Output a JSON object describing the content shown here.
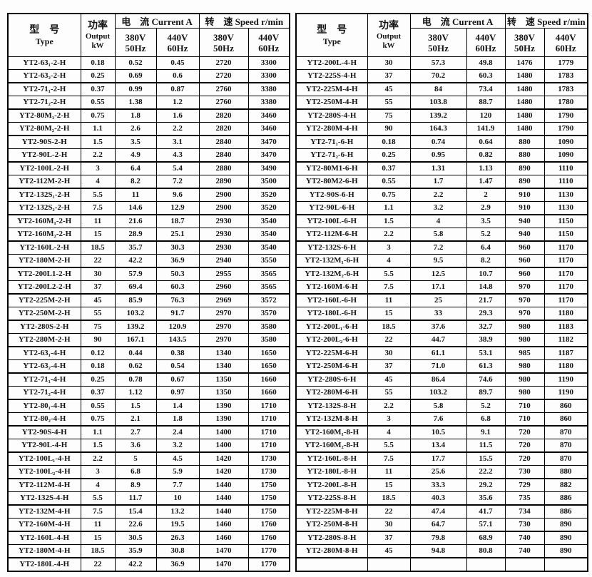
{
  "header": {
    "type_zh": "型　号",
    "type_en": "Type",
    "power_zh": "功率",
    "power_en": "Output",
    "power_unit": "kW",
    "current_label": "电　流 Current A",
    "speed_label": "转　速 Speed r/min",
    "v380": "380V",
    "hz50": "50Hz",
    "v440": "440V",
    "hz60": "60Hz"
  },
  "left_rows": [
    [
      "YT2-63₁-2-H",
      "0.18",
      "0.52",
      "0.45",
      "2720",
      "3300"
    ],
    [
      "YT2-63₂-2-H",
      "0.25",
      "0.69",
      "0.6",
      "2720",
      "3300"
    ],
    [
      "YT2-71₁-2-H",
      "0.37",
      "0.99",
      "0.87",
      "2760",
      "3380"
    ],
    [
      "YT2-71₂-2-H",
      "0.55",
      "1.38",
      "1.2",
      "2760",
      "3380"
    ],
    [
      "YT2-80M₁-2-H",
      "0.75",
      "1.8",
      "1.6",
      "2820",
      "3460"
    ],
    [
      "YT2-80M₂-2-H",
      "1.1",
      "2.6",
      "2.2",
      "2820",
      "3460"
    ],
    [
      "YT2-90S-2-H",
      "1.5",
      "3.5",
      "3.1",
      "2840",
      "3470"
    ],
    [
      "YT2-90L-2-H",
      "2.2",
      "4.9",
      "4.3",
      "2840",
      "3470"
    ],
    [
      "YT2-100L-2-H",
      "3",
      "6.4",
      "5.4",
      "2880",
      "3490"
    ],
    [
      "YT2-112M-2-H",
      "4",
      "8.2",
      "7.2",
      "2890",
      "3500"
    ],
    [
      "YT2-132S₁-2-H",
      "5.5",
      "11",
      "9.6",
      "2900",
      "3520"
    ],
    [
      "YT2-132S₂-2-H",
      "7.5",
      "14.6",
      "12.9",
      "2900",
      "3520"
    ],
    [
      "YT2-160M₁-2-H",
      "11",
      "21.6",
      "18.7",
      "2930",
      "3540"
    ],
    [
      "YT2-160M₂-2-H",
      "15",
      "28.9",
      "25.1",
      "2930",
      "3540"
    ],
    [
      "YT2-160L-2-H",
      "18.5",
      "35.7",
      "30.3",
      "2930",
      "3540"
    ],
    [
      "YT2-180M-2-H",
      "22",
      "42.2",
      "36.9",
      "2940",
      "3550"
    ],
    [
      "YT2-200L1-2-H",
      "30",
      "57.9",
      "50.3",
      "2955",
      "3565"
    ],
    [
      "YT2-200L2-2-H",
      "37",
      "69.4",
      "60.3",
      "2960",
      "3565"
    ],
    [
      "YT2-225M-2-H",
      "45",
      "85.9",
      "76.3",
      "2969",
      "3572"
    ],
    [
      "YT2-250M-2-H",
      "55",
      "103.2",
      "91.7",
      "2970",
      "3570"
    ],
    [
      "YT2-280S-2-H",
      "75",
      "139.2",
      "120.9",
      "2970",
      "3580"
    ],
    [
      "YT2-280M-2-H",
      "90",
      "167.1",
      "143.5",
      "2970",
      "3580"
    ],
    [
      "YT2-63₁-4-H",
      "0.12",
      "0.44",
      "0.38",
      "1340",
      "1650"
    ],
    [
      "YT2-63₂-4-H",
      "0.18",
      "0.62",
      "0.54",
      "1340",
      "1650"
    ],
    [
      "YT2-71₁-4-H",
      "0.25",
      "0.78",
      "0.67",
      "1350",
      "1660"
    ],
    [
      "YT2-71₂-4-H",
      "0.37",
      "1.12",
      "0.97",
      "1350",
      "1660"
    ],
    [
      "YT2-80₁-4-H",
      "0.55",
      "1.5",
      "1.4",
      "1390",
      "1710"
    ],
    [
      "YT2-80₂-4-H",
      "0.75",
      "2.1",
      "1.8",
      "1390",
      "1710"
    ],
    [
      "YT2-90S-4-H",
      "1.1",
      "2.7",
      "2.4",
      "1400",
      "1710"
    ],
    [
      "YT2-90L-4-H",
      "1.5",
      "3.6",
      "3.2",
      "1400",
      "1710"
    ],
    [
      "YT2-100L₁-4-H",
      "2.2",
      "5",
      "4.5",
      "1420",
      "1730"
    ],
    [
      "YT2-100L₂-4-H",
      "3",
      "6.8",
      "5.9",
      "1420",
      "1730"
    ],
    [
      "YT2-112M-4-H",
      "4",
      "8.9",
      "7.7",
      "1440",
      "1750"
    ],
    [
      "YT2-132S-4-H",
      "5.5",
      "11.7",
      "10",
      "1440",
      "1750"
    ],
    [
      "YT2-132M-4-H",
      "7.5",
      "15.4",
      "13.2",
      "1440",
      "1750"
    ],
    [
      "YT2-160M-4-H",
      "11",
      "22.6",
      "19.5",
      "1460",
      "1760"
    ],
    [
      "YT2-160L-4-H",
      "15",
      "30.5",
      "26.3",
      "1460",
      "1760"
    ],
    [
      "YT2-180M-4-H",
      "18.5",
      "35.9",
      "30.8",
      "1470",
      "1770"
    ],
    [
      "YT2-180L-4-H",
      "22",
      "42.2",
      "36.9",
      "1470",
      "1770"
    ]
  ],
  "right_rows": [
    [
      "YT2-200L-4-H",
      "30",
      "57.3",
      "49.8",
      "1476",
      "1779"
    ],
    [
      "YT2-225S-4-H",
      "37",
      "70.2",
      "60.3",
      "1480",
      "1783"
    ],
    [
      "YT2-225M-4-H",
      "45",
      "84",
      "73.4",
      "1480",
      "1783"
    ],
    [
      "YT2-250M-4-H",
      "55",
      "103.8",
      "88.7",
      "1480",
      "1780"
    ],
    [
      "YT2-280S-4-H",
      "75",
      "139.2",
      "120",
      "1480",
      "1790"
    ],
    [
      "YT2-280M-4-H",
      "90",
      "164.3",
      "141.9",
      "1480",
      "1790"
    ],
    [
      "YT2-71₁-6-H",
      "0.18",
      "0.74",
      "0.64",
      "880",
      "1090"
    ],
    [
      "YT2-71₂-6-H",
      "0.25",
      "0.95",
      "0.82",
      "880",
      "1090"
    ],
    [
      "YT2-80M1-6-H",
      "0.37",
      "1.31",
      "1.13",
      "890",
      "1110"
    ],
    [
      "YT2-80M2-6-H",
      "0.55",
      "1.7",
      "1.47",
      "890",
      "1110"
    ],
    [
      "YT2-90S-6-H",
      "0.75",
      "2.2",
      "2",
      "910",
      "1130"
    ],
    [
      "YT2-90L-6-H",
      "1.1",
      "3.2",
      "2.9",
      "910",
      "1130"
    ],
    [
      "YT2-100L-6-H",
      "1.5",
      "4",
      "3.5",
      "940",
      "1150"
    ],
    [
      "YT2-112M-6-H",
      "2.2",
      "5.8",
      "5.2",
      "940",
      "1150"
    ],
    [
      "YT2-132S-6-H",
      "3",
      "7.2",
      "6.4",
      "960",
      "1170"
    ],
    [
      "YT2-132M₁-6-H",
      "4",
      "9.5",
      "8.2",
      "960",
      "1170"
    ],
    [
      "YT2-132M₂-6-H",
      "5.5",
      "12.5",
      "10.7",
      "960",
      "1170"
    ],
    [
      "YT2-160M-6-H",
      "7.5",
      "17.1",
      "14.8",
      "970",
      "1170"
    ],
    [
      "YT2-160L-6-H",
      "11",
      "25",
      "21.7",
      "970",
      "1170"
    ],
    [
      "YT2-180L-6-H",
      "15",
      "33",
      "29.3",
      "970",
      "1180"
    ],
    [
      "YT2-200L₁-6-H",
      "18.5",
      "37.6",
      "32.7",
      "980",
      "1183"
    ],
    [
      "YT2-200L₂-6-H",
      "22",
      "44.7",
      "38.9",
      "980",
      "1182"
    ],
    [
      "YT2-225M-6-H",
      "30",
      "61.1",
      "53.1",
      "985",
      "1187"
    ],
    [
      "YT2-250M-6-H",
      "37",
      "71.0",
      "61.3",
      "980",
      "1180"
    ],
    [
      "YT2-280S-6-H",
      "45",
      "86.4",
      "74.6",
      "980",
      "1190"
    ],
    [
      "YT2-280M-6-H",
      "55",
      "103.2",
      "89.7",
      "980",
      "1190"
    ],
    [
      "YT2-132S-8-H",
      "2.2",
      "5.8",
      "5.2",
      "710",
      "860"
    ],
    [
      "YT2-132M-8-H",
      "3",
      "7.6",
      "6.8",
      "710",
      "860"
    ],
    [
      "YT2-160M₁-8-H",
      "4",
      "10.5",
      "9.1",
      "720",
      "870"
    ],
    [
      "YT2-160M₂-8-H",
      "5.5",
      "13.4",
      "11.5",
      "720",
      "870"
    ],
    [
      "YT2-160L-8-H",
      "7.5",
      "17.7",
      "15.5",
      "720",
      "870"
    ],
    [
      "YT2-180L-8-H",
      "11",
      "25.6",
      "22.2",
      "730",
      "880"
    ],
    [
      "YT2-200L-8-H",
      "15",
      "33.3",
      "29.2",
      "729",
      "882"
    ],
    [
      "YT2-225S-8-H",
      "18.5",
      "40.3",
      "35.6",
      "735",
      "886"
    ],
    [
      "YT2-225M-8-H",
      "22",
      "47.4",
      "41.7",
      "734",
      "886"
    ],
    [
      "YT2-250M-8-H",
      "30",
      "64.7",
      "57.1",
      "730",
      "890"
    ],
    [
      "YT2-280S-8-H",
      "37",
      "79.8",
      "68.9",
      "740",
      "890"
    ],
    [
      "YT2-280M-8-H",
      "45",
      "94.8",
      "80.8",
      "740",
      "890"
    ],
    [
      "",
      "",
      "",
      "",
      "",
      ""
    ]
  ]
}
